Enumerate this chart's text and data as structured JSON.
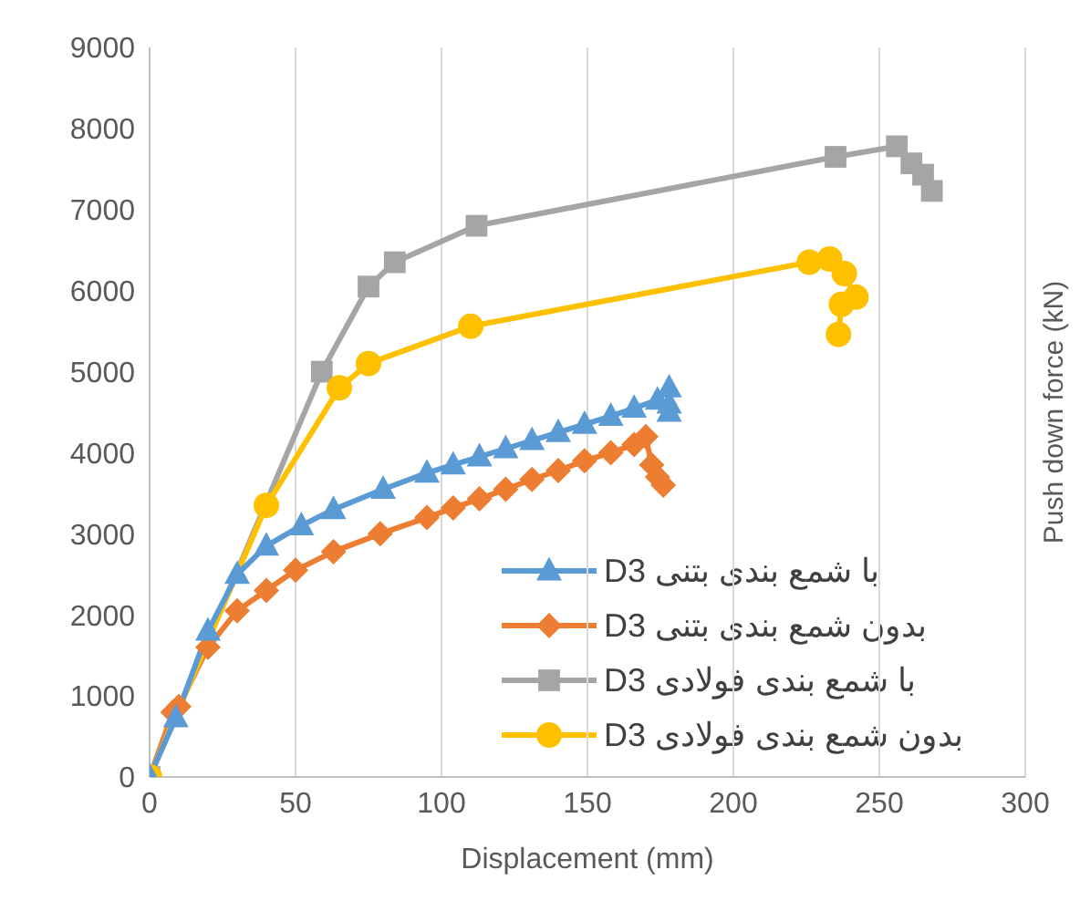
{
  "chart_data": {
    "type": "line",
    "xlabel": "Displacement (mm)",
    "ylabel": "Push down force (kN)",
    "xlim": [
      0,
      300
    ],
    "xticks": [
      0,
      50,
      100,
      150,
      200,
      250,
      300
    ],
    "ylim": [
      0,
      9000
    ],
    "yticks": [
      0,
      1000,
      2000,
      3000,
      4000,
      5000,
      6000,
      7000,
      8000,
      9000
    ],
    "grid": true,
    "legend": "bottom right",
    "line_style": "solid",
    "series": [
      {
        "name": "D3 با شمع بندی بتنی",
        "color": "#5b9bd5",
        "marker": "triangle",
        "x": [
          0,
          9,
          20,
          30,
          40,
          52,
          63,
          80,
          95,
          104,
          113,
          122,
          131,
          140,
          149,
          158,
          166,
          174,
          178,
          178,
          178
        ],
        "values": [
          0,
          730,
          1800,
          2500,
          2850,
          3100,
          3300,
          3550,
          3750,
          3850,
          3950,
          4050,
          4150,
          4250,
          4350,
          4450,
          4550,
          4650,
          4800,
          4600,
          4500
        ]
      },
      {
        "name": "D3 بدون شمع بندی بتنی",
        "color": "#ed7d31",
        "marker": "diamond",
        "x": [
          0,
          8,
          10,
          20,
          30,
          40,
          50,
          63,
          79,
          95,
          104,
          113,
          122,
          131,
          140,
          149,
          158,
          166,
          170,
          172,
          174,
          176
        ],
        "values": [
          0,
          800,
          870,
          1600,
          2050,
          2300,
          2550,
          2780,
          3000,
          3200,
          3320,
          3430,
          3550,
          3670,
          3780,
          3900,
          4000,
          4100,
          4200,
          3850,
          3700,
          3600
        ]
      },
      {
        "name": "D3 با شمع بندی فولادی",
        "color": "#a5a5a5",
        "marker": "square",
        "x": [
          0,
          59,
          75,
          84,
          112,
          235,
          256,
          261,
          265,
          268
        ],
        "values": [
          0,
          5000,
          6050,
          6350,
          6800,
          7650,
          7780,
          7570,
          7430,
          7230
        ]
      },
      {
        "name": "D3 بدون شمع بندی فولادی",
        "color": "#ffc000",
        "marker": "circle",
        "x": [
          0,
          40,
          65,
          75,
          110,
          226,
          233,
          238,
          242,
          237,
          236
        ],
        "values": [
          0,
          3350,
          4800,
          5100,
          5560,
          6350,
          6390,
          6210,
          5920,
          5830,
          5460
        ]
      }
    ]
  }
}
